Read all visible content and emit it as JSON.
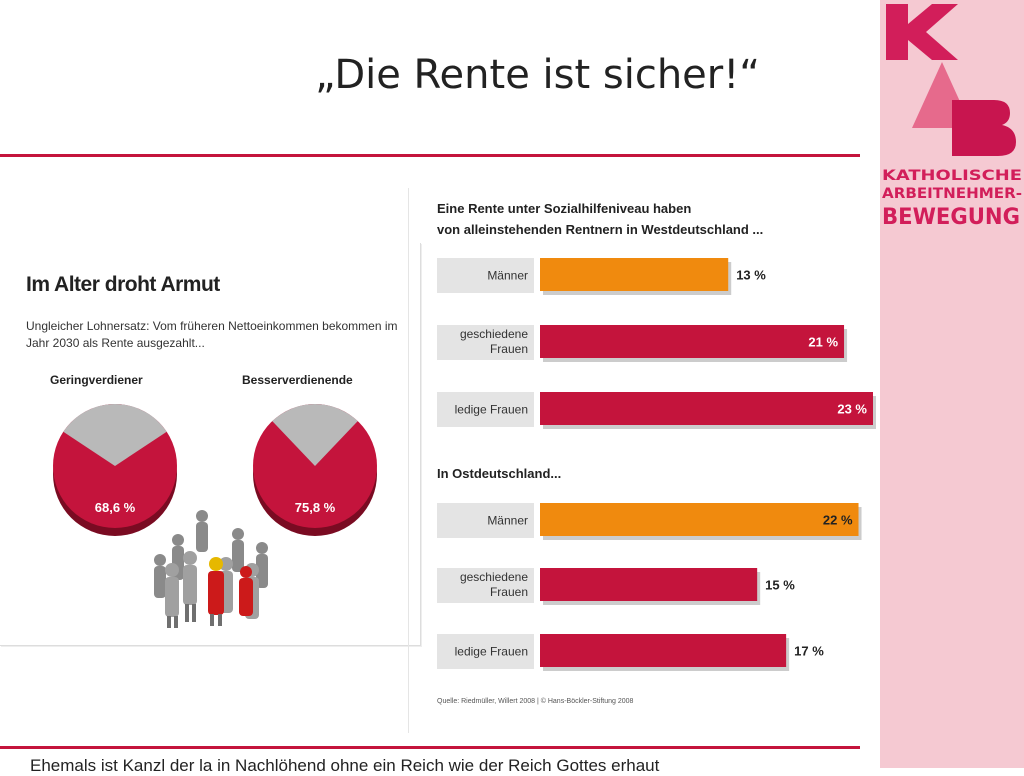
{
  "slide": {
    "title": "„Die Rente ist sicher!“",
    "bottom_text": "Ehemals ist Kanzl der la in Nachlöhend ohne ein Reich wie der Reich Gottes erhaut"
  },
  "logo": {
    "letters": "KAB",
    "line1": "KATHOLISCHE",
    "line2": "ARBEITNEHMER-",
    "line3": "BEWEGUNG"
  },
  "colors": {
    "accent": "#c4143c",
    "orange": "#f08a0e",
    "sidebar": "#f5c9d2",
    "logo_dark": "#d21e5a",
    "logo_mid": "#e66a8c",
    "pie_rest": "#b9b9b9"
  },
  "left_panel": {
    "title": "Im Alter droht Armut",
    "subtitle": "Ungleicher Lohnersatz: Vom früheren Nettoeinkommen bekommen im Jahr 2030 als Rente ausgezahlt...",
    "pie_label_left": "Geringverdiener",
    "pie_label_right": "Besserverdienende"
  },
  "bar_panel": {
    "title_line1": "Eine Rente unter Sozialhilfeniveau haben",
    "title_line2": "von alleinstehenden Rentnern in Westdeutschland ...",
    "section_east": "In Ostdeutschland...",
    "source": "Quelle: Riedmüller, Willert 2008 | © Hans-Böckler-Stiftung 2008"
  },
  "chart_data": [
    {
      "type": "pie",
      "title": "Geringverdiener",
      "slices": [
        {
          "label": "68,6 %",
          "value": 68.6
        },
        {
          "label": "",
          "value": 31.4
        }
      ]
    },
    {
      "type": "pie",
      "title": "Besserverdienende",
      "slices": [
        {
          "label": "75,8 %",
          "value": 75.8
        },
        {
          "label": "",
          "value": 24.2
        }
      ]
    },
    {
      "type": "bar",
      "orientation": "horizontal",
      "unit": "%",
      "groups": [
        {
          "name": "von alleinstehenden Rentnern in Westdeutschland ...",
          "bars": [
            {
              "lines": [
                "Männer"
              ],
              "value": 13,
              "label": "13 %",
              "color": "orange"
            },
            {
              "lines": [
                "geschiedene",
                "Frauen"
              ],
              "value": 21,
              "label": "21 %",
              "color": "red"
            },
            {
              "lines": [
                "ledige Frauen"
              ],
              "value": 23,
              "label": "23 %",
              "color": "red"
            }
          ]
        },
        {
          "name": "In Ostdeutschland...",
          "bars": [
            {
              "lines": [
                "Männer"
              ],
              "value": 22,
              "label": "22 %",
              "color": "orange"
            },
            {
              "lines": [
                "geschiedene",
                "Frauen"
              ],
              "value": 15,
              "label": "15 %",
              "color": "red"
            },
            {
              "lines": [
                "ledige Frauen"
              ],
              "value": 17,
              "label": "17 %",
              "color": "red"
            }
          ]
        }
      ]
    }
  ]
}
